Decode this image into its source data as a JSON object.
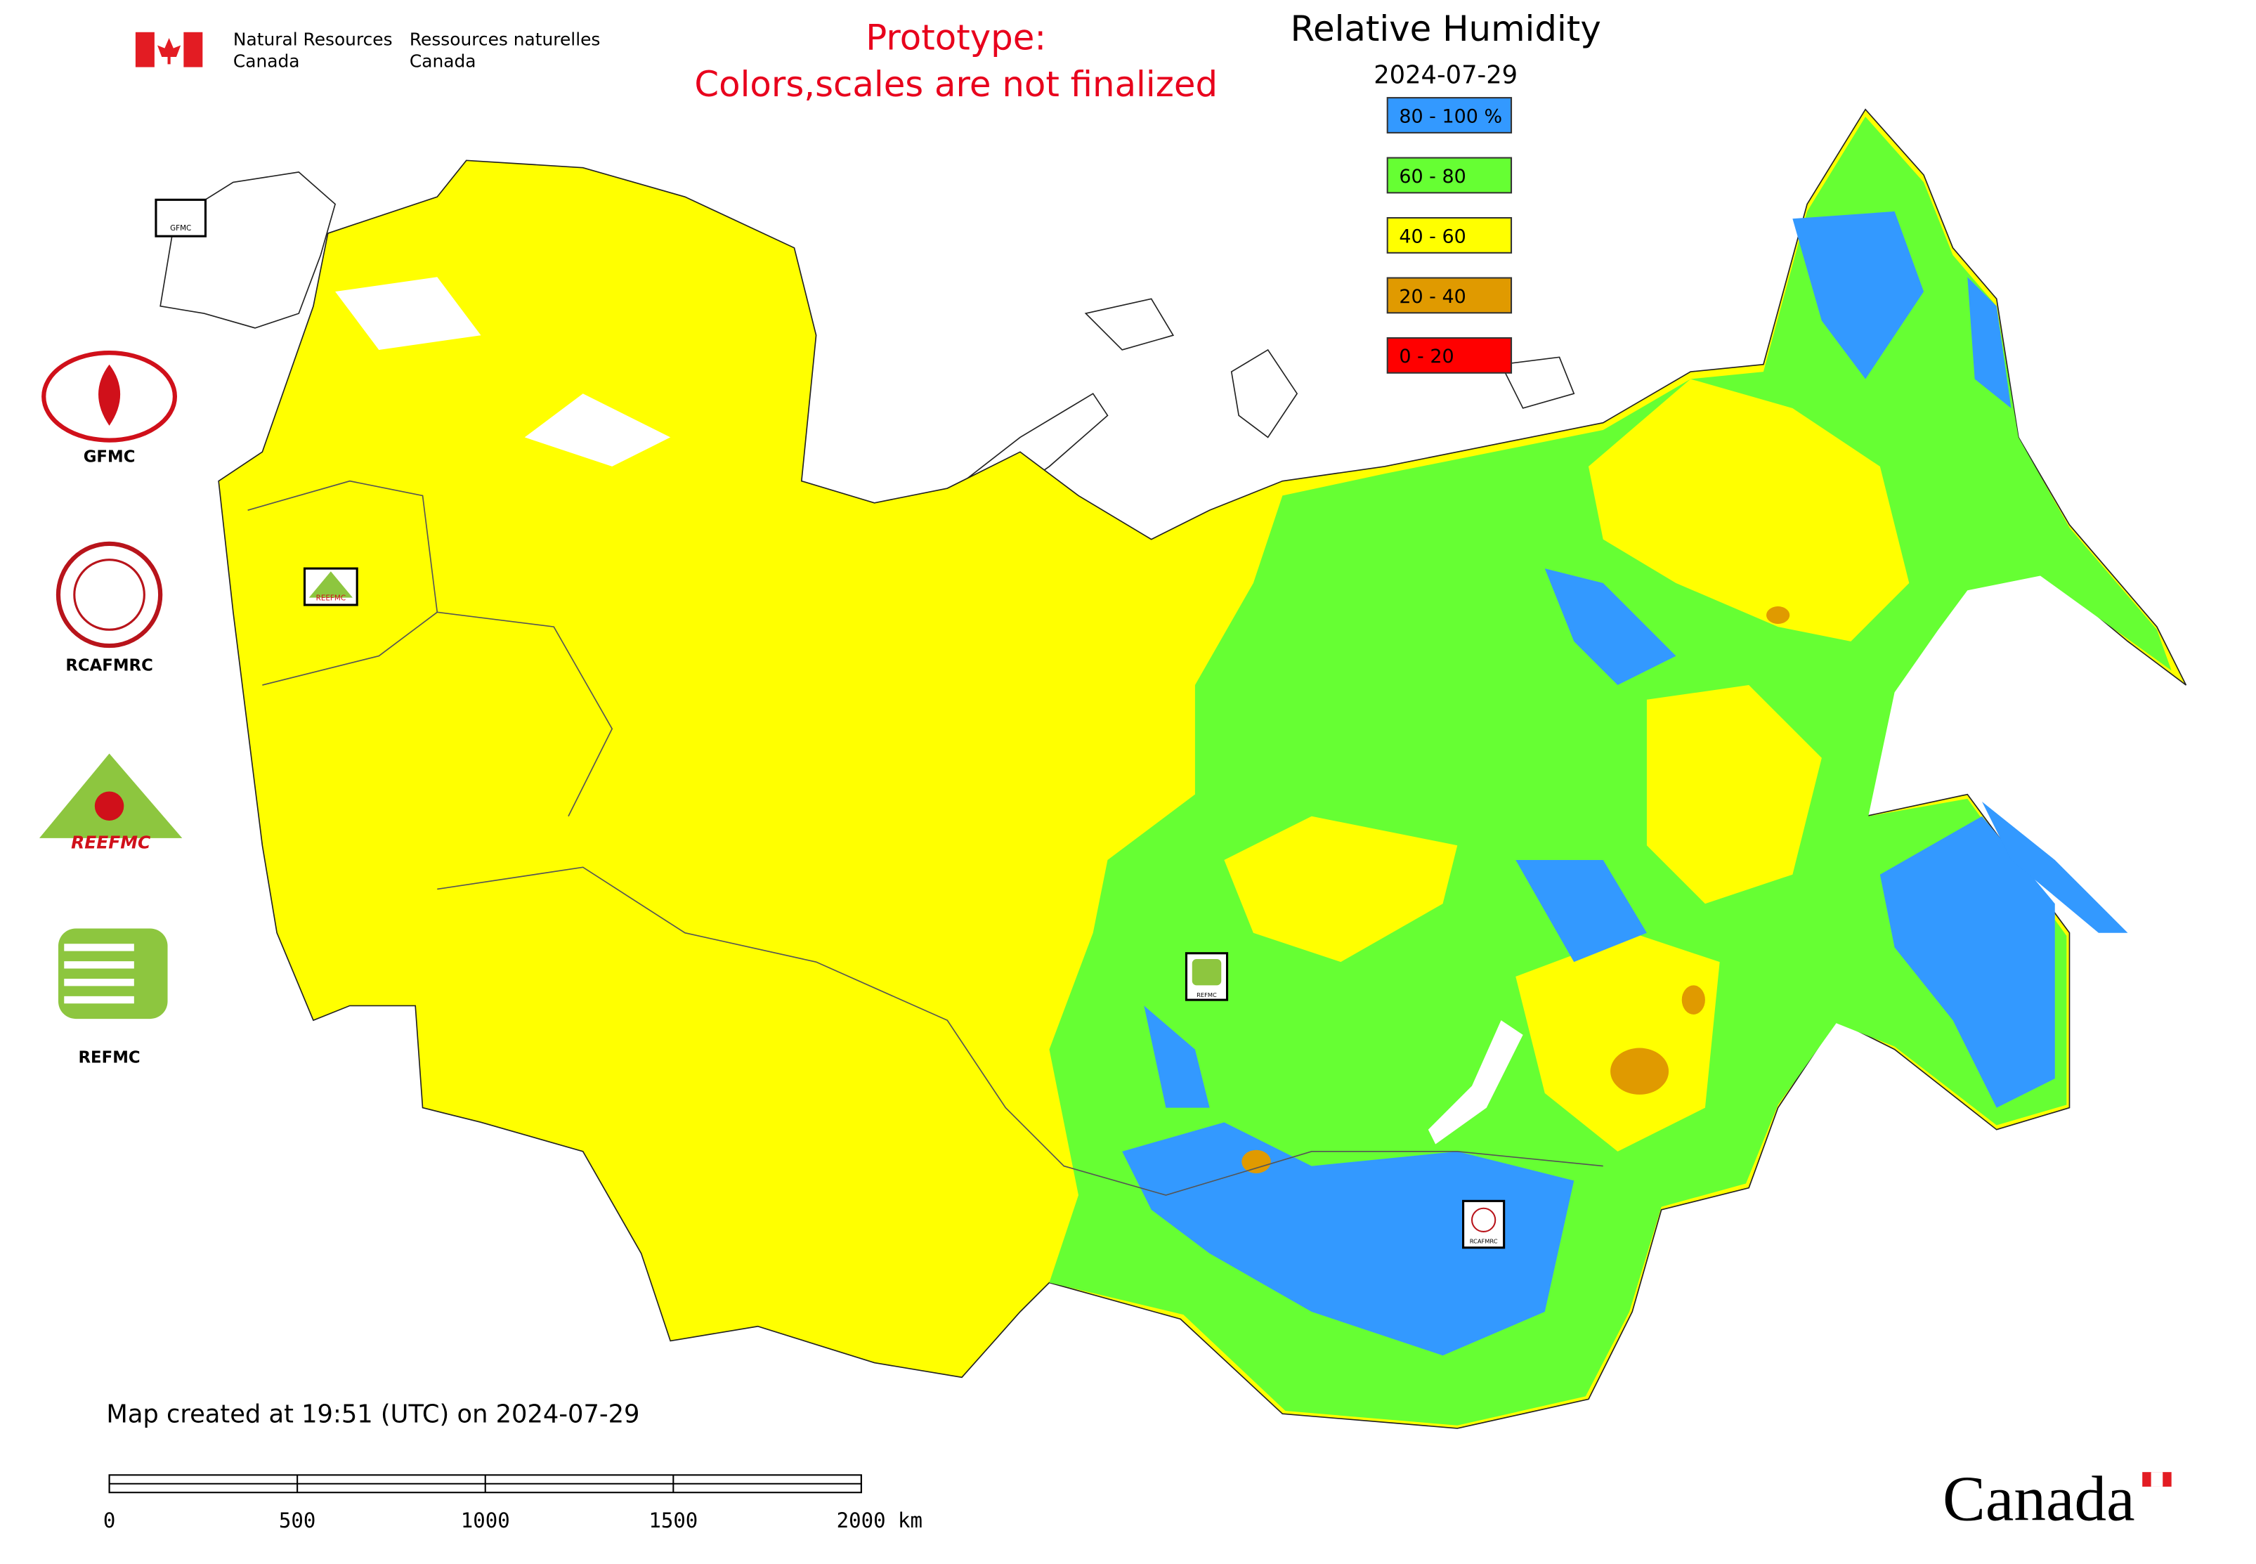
{
  "header": {
    "agency_en": [
      "Natural Resources",
      "Canada"
    ],
    "agency_fr": [
      "Ressources naturelles",
      "Canada"
    ],
    "notice": [
      "Prototype:",
      "Colors,scales are not finalized"
    ]
  },
  "legend": {
    "title": "Relative Humidity",
    "date": "2024-07-29",
    "items": [
      {
        "label": "80 - 100 %",
        "color": "#3399ff"
      },
      {
        "label": "60 - 80",
        "color": "#66ff33"
      },
      {
        "label": "40 - 60",
        "color": "#ffff00"
      },
      {
        "label": "20 - 40",
        "color": "#e09a00"
      },
      {
        "label": "0 - 20",
        "color": "#ff0000"
      }
    ]
  },
  "logos": [
    "GFMC",
    "RCAFMRC",
    "REEFMC",
    "REFMC"
  ],
  "map_markers": [
    "GFMC",
    "REEFMC",
    "REFMC",
    "RCAFMRC"
  ],
  "footer": {
    "created": "Map created at 19:51 (UTC) on 2024-07-29",
    "scale_bar": [
      "0",
      "500",
      "1000",
      "1500",
      "2000 km"
    ],
    "wordmark": "Canada"
  }
}
